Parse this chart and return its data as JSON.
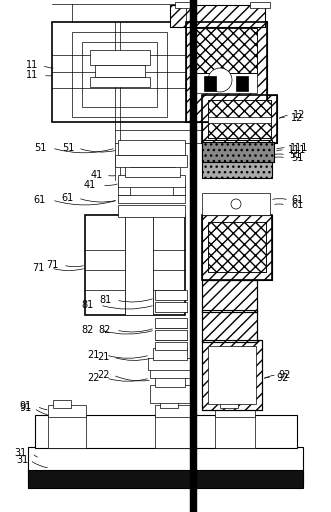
{
  "bg_color": "#ffffff",
  "lc": "#000000",
  "fig_width": 3.31,
  "fig_height": 5.12,
  "dpi": 100
}
